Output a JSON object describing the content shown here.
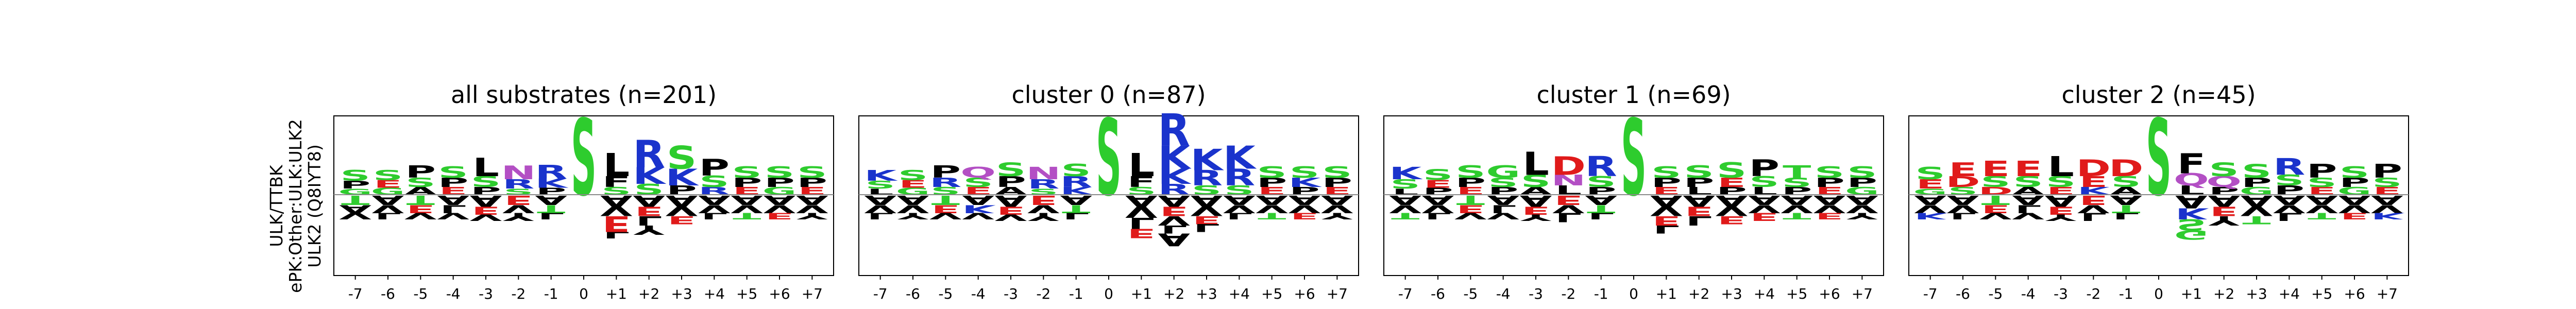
{
  "row_label": {
    "line1": "ULK/TTBK",
    "line2": "ePK:Other:ULK:ULK2",
    "line3": "ULK2 (Q8IYT8)"
  },
  "colors": {
    "S": "#2ecc2e",
    "T": "#2ecc2e",
    "G": "#2ecc2e",
    "R": "#1a33cc",
    "K": "#1a33cc",
    "H": "#1a33cc",
    "D": "#e01a1a",
    "E": "#e01a1a",
    "N": "#b34fc4",
    "Q": "#b34fc4",
    "P": "#000000",
    "L": "#000000",
    "I": "#000000",
    "V": "#000000",
    "A": "#000000",
    "M": "#000000",
    "F": "#000000",
    "W": "#000000",
    "Y": "#000000",
    "C": "#000000"
  },
  "chart_data": [
    {
      "type": "sequence-logo",
      "title": "all substrates (n=201)",
      "positions": [
        "-7",
        "-6",
        "-5",
        "-4",
        "-3",
        "-2",
        "-1",
        "0",
        "+1",
        "+2",
        "+3",
        "+4",
        "+5",
        "+6",
        "+7"
      ],
      "up": [
        [
          "S",
          "P",
          "G"
        ],
        [
          "S",
          "E",
          "G"
        ],
        [
          "P",
          "S",
          "A"
        ],
        [
          "S",
          "P",
          "E"
        ],
        [
          "L",
          "S",
          "P"
        ],
        [
          "N",
          "R",
          "S"
        ],
        [
          "R",
          "K",
          "P"
        ],
        [
          "S"
        ],
        [
          "L",
          "F",
          "S"
        ],
        [
          "R",
          "K",
          "S"
        ],
        [
          "S",
          "K",
          "P"
        ],
        [
          "P",
          "S",
          "R"
        ],
        [
          "S",
          "P",
          "E"
        ],
        [
          "S",
          "P",
          "G"
        ],
        [
          "S",
          "P",
          "E"
        ]
      ],
      "up_heights": [
        [
          0.14,
          0.1,
          0.08
        ],
        [
          0.13,
          0.1,
          0.09
        ],
        [
          0.16,
          0.12,
          0.1
        ],
        [
          0.15,
          0.12,
          0.1
        ],
        [
          0.24,
          0.14,
          0.1
        ],
        [
          0.18,
          0.12,
          0.08
        ],
        [
          0.18,
          0.12,
          0.09
        ],
        [
          1.0
        ],
        [
          0.3,
          0.14,
          0.1
        ],
        [
          0.36,
          0.22,
          0.14
        ],
        [
          0.3,
          0.22,
          0.12
        ],
        [
          0.22,
          0.15,
          0.1
        ],
        [
          0.15,
          0.12,
          0.1
        ],
        [
          0.15,
          0.12,
          0.1
        ],
        [
          0.15,
          0.12,
          0.1
        ]
      ],
      "down": [
        [
          "T",
          "A",
          "V"
        ],
        [
          "A",
          "V",
          "L"
        ],
        [
          "T",
          "E",
          "V"
        ],
        [
          "A",
          "L",
          "V"
        ],
        [
          "A",
          "E",
          "V"
        ],
        [
          "E",
          "V",
          "Y"
        ],
        [
          "A",
          "T",
          "L"
        ],
        [],
        [
          "A",
          "V",
          "E",
          "L"
        ],
        [
          "A",
          "E",
          "L",
          "Y"
        ],
        [
          "A",
          "V",
          "E"
        ],
        [
          "A",
          "V",
          "L"
        ],
        [
          "A",
          "V",
          "T"
        ],
        [
          "A",
          "V",
          "E"
        ],
        [
          "A",
          "V",
          "Y"
        ]
      ],
      "down_heights": [
        [
          0.12,
          0.1,
          0.08
        ],
        [
          0.12,
          0.1,
          0.08
        ],
        [
          0.12,
          0.1,
          0.08
        ],
        [
          0.12,
          0.1,
          0.08
        ],
        [
          0.14,
          0.1,
          0.08
        ],
        [
          0.12,
          0.1,
          0.1
        ],
        [
          0.12,
          0.1,
          0.08
        ],
        [],
        [
          0.14,
          0.12,
          0.2,
          0.08
        ],
        [
          0.14,
          0.12,
          0.12,
          0.12
        ],
        [
          0.14,
          0.12,
          0.1
        ],
        [
          0.12,
          0.1,
          0.08
        ],
        [
          0.12,
          0.1,
          0.08
        ],
        [
          0.12,
          0.1,
          0.08
        ],
        [
          0.12,
          0.1,
          0.08
        ]
      ]
    },
    {
      "type": "sequence-logo",
      "title": "cluster 0 (n=87)",
      "positions": [
        "-7",
        "-6",
        "-5",
        "-4",
        "-3",
        "-2",
        "-1",
        "0",
        "+1",
        "+2",
        "+3",
        "+4",
        "+5",
        "+6",
        "+7"
      ],
      "up": [
        [
          "K",
          "S",
          "L"
        ],
        [
          "S",
          "E",
          "G"
        ],
        [
          "P",
          "R",
          "S"
        ],
        [
          "Q",
          "S",
          "E"
        ],
        [
          "S",
          "P",
          "A"
        ],
        [
          "N",
          "R",
          "S"
        ],
        [
          "S",
          "R",
          "K"
        ],
        [
          "S"
        ],
        [
          "L",
          "F",
          "S"
        ],
        [
          "R",
          "K",
          "K",
          "R"
        ],
        [
          "K",
          "R",
          "S"
        ],
        [
          "K",
          "R",
          "S"
        ],
        [
          "S",
          "P",
          "E"
        ],
        [
          "S",
          "K",
          "P"
        ],
        [
          "S",
          "P",
          "E"
        ]
      ],
      "up_heights": [
        [
          0.14,
          0.1,
          0.08
        ],
        [
          0.13,
          0.1,
          0.09
        ],
        [
          0.16,
          0.12,
          0.1
        ],
        [
          0.14,
          0.12,
          0.1
        ],
        [
          0.18,
          0.14,
          0.1
        ],
        [
          0.16,
          0.12,
          0.08
        ],
        [
          0.16,
          0.14,
          0.1
        ],
        [
          1.0
        ],
        [
          0.3,
          0.14,
          0.1
        ],
        [
          0.42,
          0.3,
          0.2,
          0.14
        ],
        [
          0.28,
          0.2,
          0.12
        ],
        [
          0.3,
          0.22,
          0.12
        ],
        [
          0.15,
          0.12,
          0.1
        ],
        [
          0.15,
          0.12,
          0.1
        ],
        [
          0.15,
          0.12,
          0.1
        ]
      ],
      "down": [
        [
          "A",
          "V",
          "L"
        ],
        [
          "A",
          "V",
          "Y"
        ],
        [
          "T",
          "E",
          "V"
        ],
        [
          "A",
          "K",
          "V"
        ],
        [
          "A",
          "E",
          "V"
        ],
        [
          "E",
          "V",
          "Y"
        ],
        [
          "A",
          "T",
          "L"
        ],
        [],
        [
          "A",
          "V",
          "L",
          "E"
        ],
        [
          "A",
          "E",
          "V",
          "L",
          "A"
        ],
        [
          "A",
          "V",
          "E",
          "L"
        ],
        [
          "A",
          "V",
          "L"
        ],
        [
          "A",
          "V",
          "T"
        ],
        [
          "A",
          "V",
          "E"
        ],
        [
          "A",
          "V",
          "Y"
        ]
      ],
      "down_heights": [
        [
          0.12,
          0.1,
          0.08
        ],
        [
          0.12,
          0.1,
          0.08
        ],
        [
          0.12,
          0.1,
          0.08
        ],
        [
          0.12,
          0.1,
          0.08
        ],
        [
          0.14,
          0.1,
          0.08
        ],
        [
          0.12,
          0.1,
          0.1
        ],
        [
          0.12,
          0.1,
          0.08
        ],
        [],
        [
          0.14,
          0.14,
          0.14,
          0.12
        ],
        [
          0.14,
          0.12,
          0.12,
          0.1,
          0.16
        ],
        [
          0.14,
          0.12,
          0.1,
          0.1
        ],
        [
          0.12,
          0.1,
          0.08
        ],
        [
          0.12,
          0.1,
          0.08
        ],
        [
          0.12,
          0.1,
          0.08
        ],
        [
          0.12,
          0.1,
          0.08
        ]
      ]
    },
    {
      "type": "sequence-logo",
      "title": "cluster 1 (n=69)",
      "positions": [
        "-7",
        "-6",
        "-5",
        "-4",
        "-3",
        "-2",
        "-1",
        "0",
        "+1",
        "+2",
        "+3",
        "+4",
        "+5",
        "+6",
        "+7"
      ],
      "up": [
        [
          "K",
          "S",
          "L"
        ],
        [
          "S",
          "E",
          "P"
        ],
        [
          "S",
          "P",
          "E"
        ],
        [
          "G",
          "S",
          "P"
        ],
        [
          "L",
          "S",
          "A"
        ],
        [
          "D",
          "N",
          "L"
        ],
        [
          "R",
          "S",
          "P"
        ],
        [
          "S"
        ],
        [
          "S",
          "P",
          "E"
        ],
        [
          "S",
          "P",
          "L"
        ],
        [
          "S",
          "E",
          "P"
        ],
        [
          "P",
          "S",
          "L"
        ],
        [
          "T",
          "S",
          "P"
        ],
        [
          "S",
          "P",
          "E"
        ],
        [
          "S",
          "P",
          "G"
        ]
      ],
      "up_heights": [
        [
          0.16,
          0.12,
          0.08
        ],
        [
          0.14,
          0.1,
          0.09
        ],
        [
          0.16,
          0.12,
          0.1
        ],
        [
          0.16,
          0.12,
          0.1
        ],
        [
          0.3,
          0.16,
          0.1
        ],
        [
          0.24,
          0.14,
          0.12
        ],
        [
          0.26,
          0.14,
          0.1
        ],
        [
          1.0
        ],
        [
          0.15,
          0.12,
          0.1
        ],
        [
          0.16,
          0.12,
          0.1
        ],
        [
          0.2,
          0.12,
          0.1
        ],
        [
          0.22,
          0.14,
          0.1
        ],
        [
          0.16,
          0.12,
          0.1
        ],
        [
          0.15,
          0.12,
          0.1
        ],
        [
          0.15,
          0.12,
          0.1
        ]
      ],
      "down": [
        [
          "A",
          "V",
          "T"
        ],
        [
          "A",
          "V",
          "L"
        ],
        [
          "T",
          "E",
          "V"
        ],
        [
          "A",
          "L",
          "V"
        ],
        [
          "A",
          "E",
          "Y"
        ],
        [
          "E",
          "V",
          "L"
        ],
        [
          "A",
          "T",
          "L"
        ],
        [],
        [
          "A",
          "V",
          "E",
          "L"
        ],
        [
          "A",
          "E",
          "L"
        ],
        [
          "A",
          "V",
          "E"
        ],
        [
          "A",
          "V",
          "E"
        ],
        [
          "A",
          "V",
          "T"
        ],
        [
          "A",
          "V",
          "E"
        ],
        [
          "A",
          "V",
          "Y"
        ]
      ],
      "down_heights": [
        [
          0.12,
          0.1,
          0.08
        ],
        [
          0.12,
          0.1,
          0.08
        ],
        [
          0.12,
          0.1,
          0.08
        ],
        [
          0.12,
          0.1,
          0.08
        ],
        [
          0.14,
          0.1,
          0.08
        ],
        [
          0.12,
          0.1,
          0.12
        ],
        [
          0.12,
          0.1,
          0.08
        ],
        [],
        [
          0.14,
          0.12,
          0.12,
          0.1
        ],
        [
          0.14,
          0.12,
          0.12
        ],
        [
          0.14,
          0.12,
          0.1
        ],
        [
          0.12,
          0.1,
          0.1
        ],
        [
          0.12,
          0.1,
          0.08
        ],
        [
          0.12,
          0.1,
          0.08
        ],
        [
          0.12,
          0.1,
          0.08
        ]
      ]
    },
    {
      "type": "sequence-logo",
      "title": "cluster 2 (n=45)",
      "positions": [
        "-7",
        "-6",
        "-5",
        "-4",
        "-3",
        "-2",
        "-1",
        "0",
        "+1",
        "+2",
        "+3",
        "+4",
        "+5",
        "+6",
        "+7"
      ],
      "up": [
        [
          "S",
          "E",
          "G"
        ],
        [
          "E",
          "D",
          "S"
        ],
        [
          "E",
          "S",
          "D"
        ],
        [
          "E",
          "S",
          "A"
        ],
        [
          "L",
          "S",
          "E"
        ],
        [
          "D",
          "E",
          "K"
        ],
        [
          "D",
          "S",
          "A"
        ],
        [
          "S"
        ],
        [
          "F",
          "Q",
          "L"
        ],
        [
          "S",
          "Q",
          "P"
        ],
        [
          "S",
          "P",
          "G"
        ],
        [
          "R",
          "S",
          "P"
        ],
        [
          "P",
          "S",
          "E"
        ],
        [
          "S",
          "P",
          "G"
        ],
        [
          "P",
          "S",
          "E"
        ]
      ],
      "up_heights": [
        [
          0.16,
          0.12,
          0.08
        ],
        [
          0.18,
          0.14,
          0.1
        ],
        [
          0.2,
          0.14,
          0.1
        ],
        [
          0.2,
          0.14,
          0.1
        ],
        [
          0.26,
          0.14,
          0.1
        ],
        [
          0.22,
          0.14,
          0.1
        ],
        [
          0.22,
          0.14,
          0.1
        ],
        [
          1.0
        ],
        [
          0.26,
          0.16,
          0.12
        ],
        [
          0.18,
          0.14,
          0.1
        ],
        [
          0.18,
          0.12,
          0.1
        ],
        [
          0.22,
          0.14,
          0.12
        ],
        [
          0.18,
          0.12,
          0.1
        ],
        [
          0.15,
          0.12,
          0.1
        ],
        [
          0.18,
          0.12,
          0.1
        ]
      ],
      "down": [
        [
          "A",
          "V",
          "K"
        ],
        [
          "A",
          "V",
          "L"
        ],
        [
          "T",
          "E",
          "V"
        ],
        [
          "A",
          "L",
          "V"
        ],
        [
          "A",
          "E",
          "Y"
        ],
        [
          "E",
          "V",
          "L"
        ],
        [
          "A",
          "T",
          "L"
        ],
        [],
        [
          "A",
          "K",
          "S",
          "G"
        ],
        [
          "A",
          "E",
          "Y"
        ],
        [
          "A",
          "V",
          "T"
        ],
        [
          "A",
          "V",
          "L"
        ],
        [
          "A",
          "V",
          "T"
        ],
        [
          "A",
          "V",
          "E"
        ],
        [
          "A",
          "V",
          "K"
        ]
      ],
      "down_heights": [
        [
          0.12,
          0.1,
          0.08
        ],
        [
          0.12,
          0.1,
          0.08
        ],
        [
          0.12,
          0.1,
          0.08
        ],
        [
          0.12,
          0.1,
          0.08
        ],
        [
          0.14,
          0.1,
          0.08
        ],
        [
          0.12,
          0.1,
          0.1
        ],
        [
          0.12,
          0.1,
          0.08
        ],
        [],
        [
          0.16,
          0.14,
          0.14,
          0.12
        ],
        [
          0.14,
          0.12,
          0.12
        ],
        [
          0.14,
          0.12,
          0.1
        ],
        [
          0.12,
          0.1,
          0.1
        ],
        [
          0.12,
          0.1,
          0.08
        ],
        [
          0.12,
          0.1,
          0.08
        ],
        [
          0.12,
          0.1,
          0.08
        ]
      ]
    }
  ]
}
